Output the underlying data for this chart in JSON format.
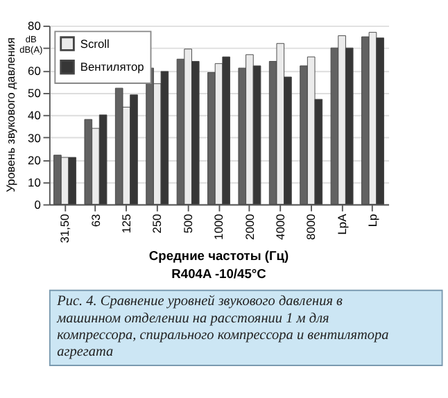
{
  "chart_data": {
    "type": "bar",
    "ylabel": "Уровень звукового давления",
    "xlabel": "Средние частоты (Гц)",
    "categories": [
      "31,50",
      "63",
      "125",
      "250",
      "500",
      "1000",
      "2000",
      "4000",
      "8000",
      "LpA",
      "Lp"
    ],
    "series": [
      {
        "color": "#626262",
        "values": [
          22,
          38,
          52,
          61,
          65,
          59,
          61,
          64,
          62,
          70,
          75
        ]
      },
      {
        "name": "Scroll",
        "color": "#ebebeb",
        "values": [
          21,
          34,
          43.5,
          54,
          69.5,
          63,
          67,
          72,
          66,
          75.5,
          77
        ]
      },
      {
        "name": "Вентилятор",
        "color": "#363636",
        "values": [
          21,
          40,
          49,
          59.5,
          64,
          66,
          62,
          57,
          47,
          70,
          74.5
        ]
      }
    ],
    "ylim": [
      0,
      80
    ],
    "yticks": [
      0,
      10,
      20,
      30,
      40,
      50,
      60,
      {
        "value": 70,
        "label": null
      },
      80
    ],
    "grid": "y",
    "legend": "top left",
    "annotations": [
      "dB",
      "dB(A)",
      "R404A  -10/45°C",
      "Рис. 4. Сравнение уровней звукового давления в машинном отделении на расстоянии 1 м для компрессора, спирального компрессора и вентилятора агрегата"
    ]
  }
}
